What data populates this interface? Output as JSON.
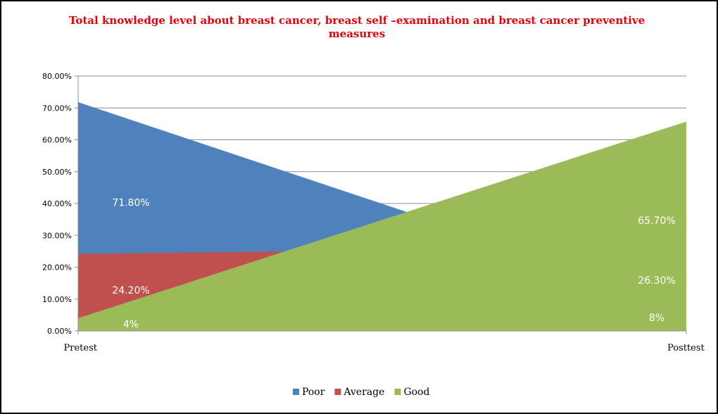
{
  "chart_data": {
    "type": "area",
    "title": "Total knowledge level about breast cancer, breast self –examination and breast cancer preventive measures",
    "title_color": "#e8000b",
    "categories": [
      "Pretest",
      "Posttest"
    ],
    "series": [
      {
        "name": "Poor",
        "values": [
          71.8,
          8
        ],
        "labels": [
          "71.80%",
          "8%"
        ],
        "color": "#4f81bd"
      },
      {
        "name": "Average",
        "values": [
          24.2,
          26.3
        ],
        "labels": [
          "24.20%",
          "26.30%"
        ],
        "color": "#c0504d"
      },
      {
        "name": "Good",
        "values": [
          4,
          65.7
        ],
        "labels": [
          "4%",
          "65.70%"
        ],
        "color": "#9bbb59"
      }
    ],
    "ylim": [
      0,
      80
    ],
    "yticks": [
      "0.00%",
      "10.00%",
      "20.00%",
      "30.00%",
      "40.00%",
      "50.00%",
      "60.00%",
      "70.00%",
      "80.00%"
    ],
    "xlabel": "",
    "ylabel": "",
    "grid": true,
    "legend_position": "bottom"
  }
}
